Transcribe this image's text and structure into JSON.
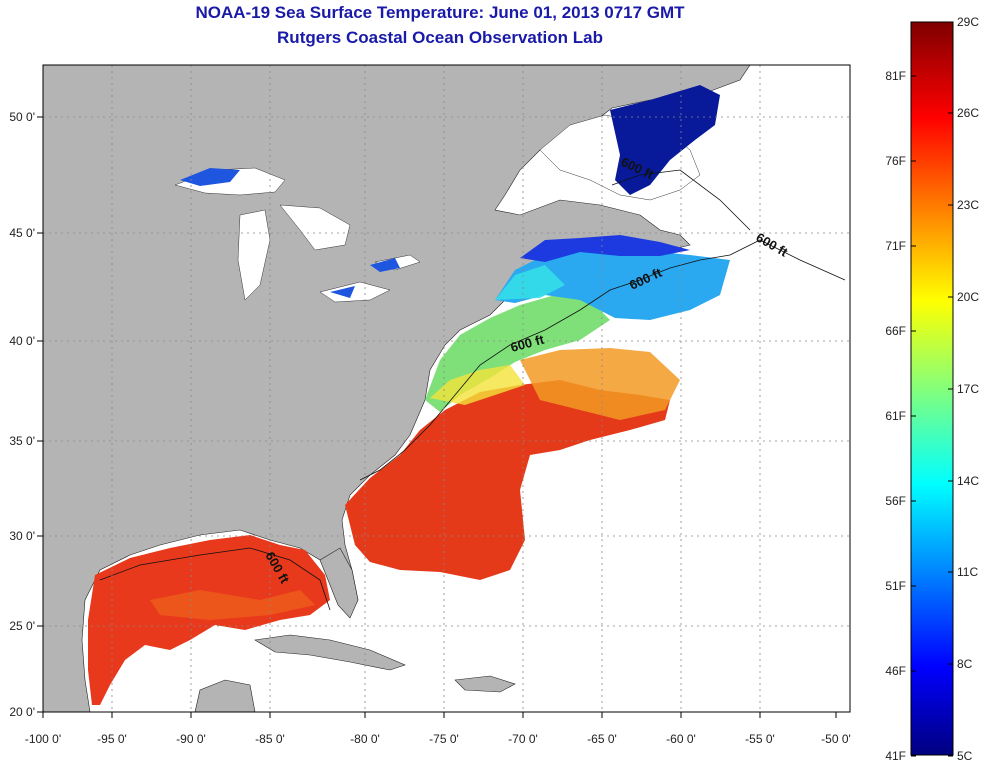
{
  "title": "NOAA-19 Sea Surface Temperature:  June 01, 2013 0717 GMT",
  "subtitle": "Rutgers Coastal Ocean Observation Lab",
  "lon_ticks": [
    "-100 0'",
    "-95 0'",
    "-90 0'",
    "-85 0'",
    "-80 0'",
    "-75 0'",
    "-70 0'",
    "-65 0'",
    "-60 0'",
    "-55 0'",
    "-50 0'"
  ],
  "lat_ticks": [
    "50 0'",
    "45 0'",
    "40 0'",
    "35 0'",
    "30 0'",
    "25 0'",
    "20 0'"
  ],
  "colorbar": {
    "fahrenheit": [
      "81F",
      "76F",
      "71F",
      "66F",
      "61F",
      "56F",
      "51F",
      "46F",
      "41F"
    ],
    "celsius": [
      "29C",
      "26C",
      "23C",
      "20C",
      "17C",
      "14C",
      "11C",
      "8C",
      "5C"
    ]
  },
  "contour_labels": [
    "600 ft",
    "600 ft",
    "600 ft",
    "600 ft",
    "600 ft"
  ],
  "colors": {
    "land": "#b4b4b4",
    "title": "#1a1aa8",
    "grid": "#888888"
  }
}
